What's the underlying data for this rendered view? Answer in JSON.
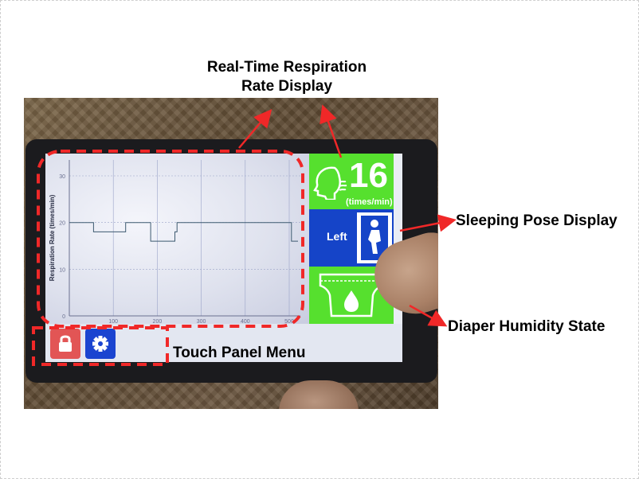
{
  "annotations": {
    "rr_title_line1": "Real-Time Respiration",
    "rr_title_line2": "Rate Display",
    "sleeping_pose": "Sleeping Pose Display",
    "diaper_humidity": "Diaper Humidity  State",
    "touch_panel": "Touch Panel Menu"
  },
  "device_screen": {
    "rr_value": "16",
    "rr_unit": "(times/min)",
    "pose_label": "Left",
    "menu_icons": [
      "lock-icon",
      "gear-icon"
    ]
  },
  "chart_data": {
    "type": "line",
    "ylabel": "Respiration Rate  (times/min)",
    "xlabel": "",
    "ylim": [
      0,
      30
    ],
    "xlim": [
      0,
      500
    ],
    "y_ticks": [
      "0",
      "10",
      "20",
      "30"
    ],
    "x_ticks": [
      "100",
      "200",
      "300",
      "400",
      "500"
    ],
    "series": [
      {
        "x": [
          0,
          55,
          55,
          128,
          128,
          185,
          185,
          240,
          240,
          245,
          245,
          505,
          505,
          520
        ],
        "y": [
          20,
          20,
          18,
          18,
          20,
          20,
          16,
          16,
          18,
          18,
          20,
          20,
          16,
          16
        ]
      }
    ]
  },
  "colors": {
    "annotation_dash": "#f02828",
    "tile_green": "#56e02e",
    "tile_blue": "#1544c8",
    "lock_button": "#e25555",
    "settings_button": "#1a44d0"
  }
}
